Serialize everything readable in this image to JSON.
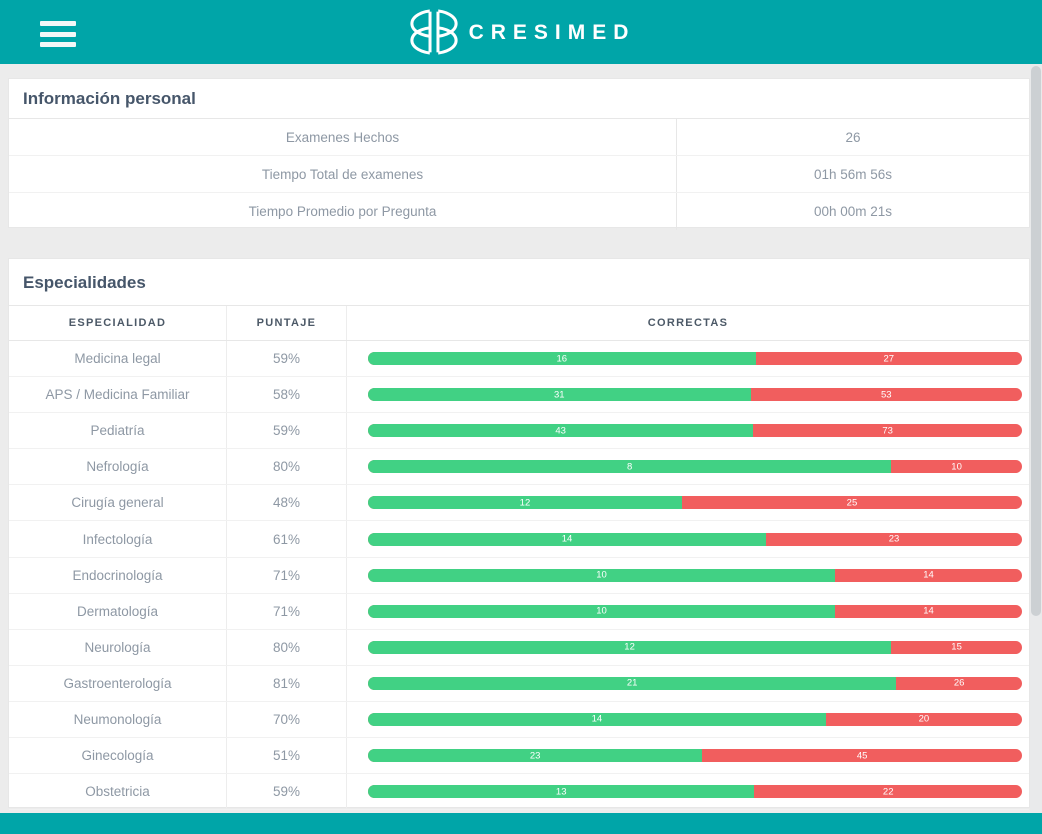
{
  "header": {
    "brand": "CRESIMED",
    "menu_icon": "hamburger",
    "logo_icon": "cresimed-overlapping-circles"
  },
  "personal_info": {
    "title": "Información personal",
    "rows": [
      {
        "label": "Examenes Hechos",
        "value": "26"
      },
      {
        "label": "Tiempo Total de examenes",
        "value": "01h 56m 56s"
      },
      {
        "label": "Tiempo Promedio por Pregunta",
        "value": "00h 00m 21s"
      }
    ]
  },
  "specialties": {
    "title": "Especialidades",
    "columns": [
      "ESPECIALIDAD",
      "PUNTAJE",
      "CORRECTAS"
    ],
    "rows": [
      {
        "name": "Medicina legal",
        "score": "59%",
        "correct": 16,
        "total": 27
      },
      {
        "name": "APS / Medicina Familiar",
        "score": "58%",
        "correct": 31,
        "total": 53
      },
      {
        "name": "Pediatría",
        "score": "59%",
        "correct": 43,
        "total": 73
      },
      {
        "name": "Nefrología",
        "score": "80%",
        "correct": 8,
        "total": 10
      },
      {
        "name": "Cirugía general",
        "score": "48%",
        "correct": 12,
        "total": 25
      },
      {
        "name": "Infectología",
        "score": "61%",
        "correct": 14,
        "total": 23
      },
      {
        "name": "Endocrinología",
        "score": "71%",
        "correct": 10,
        "total": 14
      },
      {
        "name": "Dermatología",
        "score": "71%",
        "correct": 10,
        "total": 14
      },
      {
        "name": "Neurología",
        "score": "80%",
        "correct": 12,
        "total": 15
      },
      {
        "name": "Gastroenterología",
        "score": "81%",
        "correct": 21,
        "total": 26
      },
      {
        "name": "Neumonología",
        "score": "70%",
        "correct": 14,
        "total": 20
      },
      {
        "name": "Ginecología",
        "score": "51%",
        "correct": 23,
        "total": 45
      },
      {
        "name": "Obstetricia",
        "score": "59%",
        "correct": 13,
        "total": 22
      }
    ]
  },
  "colors": {
    "teal": "#00a5a8",
    "green": "#41d184",
    "red": "#f15e5e"
  }
}
